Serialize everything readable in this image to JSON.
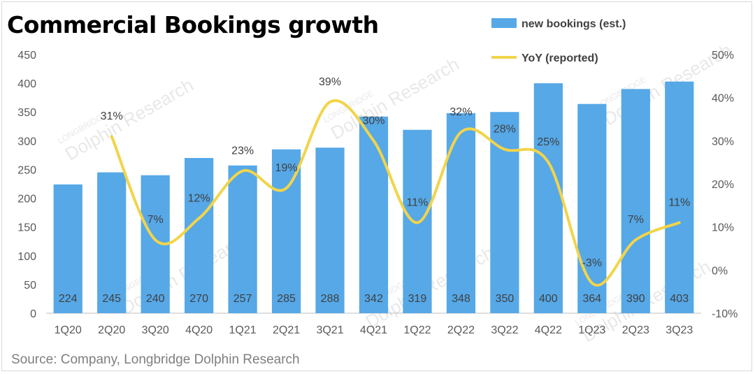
{
  "title": "Commercial Bookings growth",
  "source": "Source:  Company, Longbridge Dolphin Research",
  "watermark": {
    "line1": "LONGBRIDGE",
    "line2": "Dolphin Research"
  },
  "colors": {
    "bar": "#56a8e7",
    "line": "#f2d44a",
    "axis": "#bfbfbf",
    "grid": "#f0f0f0"
  },
  "chart_data": {
    "type": "bar",
    "categories": [
      "1Q20",
      "2Q20",
      "3Q20",
      "4Q20",
      "1Q21",
      "2Q21",
      "3Q21",
      "4Q21",
      "1Q22",
      "2Q22",
      "3Q22",
      "4Q22",
      "1Q23",
      "2Q23",
      "3Q23"
    ],
    "series": [
      {
        "name": "new bookings (est.)",
        "type": "bar",
        "axis": "left",
        "values": [
          224,
          245,
          240,
          270,
          257,
          285,
          288,
          342,
          319,
          348,
          350,
          400,
          364,
          390,
          403
        ],
        "labels": [
          "224",
          "245",
          "240",
          "270",
          "257",
          "285",
          "288",
          "342",
          "319",
          "348",
          "350",
          "400",
          "364",
          "390",
          "403"
        ]
      },
      {
        "name": "YoY  (reported)",
        "type": "line",
        "axis": "right",
        "values": [
          null,
          31,
          7,
          12,
          23,
          19,
          39,
          30,
          11,
          32,
          28,
          25,
          -3,
          7,
          11
        ],
        "labels": [
          "",
          "31%",
          "7%",
          "12%",
          "23%",
          "19%",
          "39%",
          "30%",
          "11%",
          "32%",
          "28%",
          "25%",
          "-3%",
          "7%",
          "11%"
        ]
      }
    ],
    "y_left": {
      "min": 0,
      "max": 450,
      "ticks": [
        "0",
        "50",
        "100",
        "150",
        "200",
        "250",
        "300",
        "350",
        "400",
        "450"
      ]
    },
    "y_right": {
      "min": -10,
      "max": 50,
      "ticks": [
        "-10%",
        "0%",
        "10%",
        "20%",
        "30%",
        "40%",
        "50%"
      ]
    },
    "legend_position": "top-right",
    "grid": false
  }
}
